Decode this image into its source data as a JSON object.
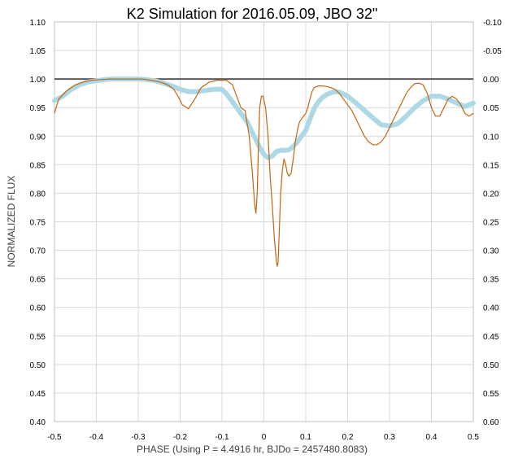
{
  "chart_data": {
    "type": "line",
    "title": "K2 Simulation for 2016.05.09, JBO 32\"",
    "xlabel": "PHASE (Using P = 4.4916 hr, BJDo = 2457480.8083)",
    "ylabel": "NORMALIZED FLUX",
    "xlim": [
      -0.5,
      0.5
    ],
    "ylim": [
      0.4,
      1.1
    ],
    "y2lim": [
      -0.1,
      0.6
    ],
    "y2_inverted": true,
    "grid": true,
    "x_ticks": [
      "-0.5",
      "-0.4",
      "-0.3",
      "-0.2",
      "-0.1",
      "0",
      "0.1",
      "0.2",
      "0.3",
      "0.4",
      "0.5"
    ],
    "y_ticks": [
      "0.40",
      "0.45",
      "0.50",
      "0.55",
      "0.60",
      "0.65",
      "0.70",
      "0.75",
      "0.80",
      "0.85",
      "0.90",
      "0.95",
      "1.00",
      "1.05",
      "1.10"
    ],
    "y2_ticks": [
      "0.60",
      "0.55",
      "0.50",
      "0.45",
      "0.40",
      "0.35",
      "0.30",
      "0.25",
      "0.20",
      "0.15",
      "0.10",
      "0.05",
      "0.00",
      "-0.05",
      "-0.10"
    ],
    "reference_line": 1.0,
    "colors": {
      "model": "#c5660e",
      "simulation": "#add8e6",
      "reference": "#595959",
      "grid": "#d9d9d9"
    },
    "series": [
      {
        "style": "thin-line",
        "x": [
          -0.5,
          -0.49,
          -0.47,
          -0.45,
          -0.43,
          -0.41,
          -0.39,
          -0.37,
          -0.35,
          -0.33,
          -0.31,
          -0.29,
          -0.27,
          -0.25,
          -0.24,
          -0.23,
          -0.22,
          -0.215,
          -0.205,
          -0.195,
          -0.18,
          -0.165,
          -0.15,
          -0.13,
          -0.11,
          -0.09,
          -0.075,
          -0.065,
          -0.055,
          -0.045,
          -0.035,
          -0.028,
          -0.022,
          -0.019,
          -0.016,
          -0.013,
          -0.01,
          -0.006,
          -0.002,
          0.004,
          0.01,
          0.015,
          0.02,
          0.025,
          0.03,
          0.032,
          0.034,
          0.037,
          0.04,
          0.044,
          0.048,
          0.052,
          0.056,
          0.06,
          0.065,
          0.07,
          0.075,
          0.08,
          0.085,
          0.09,
          0.095,
          0.1,
          0.105,
          0.11,
          0.115,
          0.12,
          0.13,
          0.14,
          0.15,
          0.16,
          0.17,
          0.18,
          0.19,
          0.2,
          0.21,
          0.22,
          0.23,
          0.24,
          0.25,
          0.26,
          0.27,
          0.28,
          0.29,
          0.3,
          0.31,
          0.32,
          0.33,
          0.34,
          0.35,
          0.36,
          0.37,
          0.38,
          0.39,
          0.4,
          0.41,
          0.42,
          0.43,
          0.44,
          0.45,
          0.46,
          0.47,
          0.48,
          0.49,
          0.5
        ],
        "y": [
          0.94,
          0.965,
          0.98,
          0.99,
          0.995,
          0.998,
          0.999,
          1.0,
          1.0,
          1.0,
          1.0,
          1.0,
          0.998,
          0.995,
          0.993,
          0.99,
          0.985,
          0.982,
          0.97,
          0.955,
          0.948,
          0.965,
          0.985,
          0.995,
          0.998,
          0.998,
          0.99,
          0.97,
          0.95,
          0.945,
          0.9,
          0.84,
          0.78,
          0.765,
          0.8,
          0.88,
          0.95,
          0.97,
          0.97,
          0.95,
          0.9,
          0.83,
          0.78,
          0.72,
          0.68,
          0.672,
          0.68,
          0.74,
          0.8,
          0.84,
          0.86,
          0.85,
          0.835,
          0.83,
          0.835,
          0.86,
          0.89,
          0.91,
          0.925,
          0.93,
          0.935,
          0.94,
          0.95,
          0.965,
          0.978,
          0.985,
          0.988,
          0.988,
          0.987,
          0.985,
          0.982,
          0.975,
          0.965,
          0.955,
          0.945,
          0.93,
          0.915,
          0.9,
          0.89,
          0.885,
          0.885,
          0.89,
          0.9,
          0.915,
          0.93,
          0.945,
          0.96,
          0.975,
          0.985,
          0.992,
          0.993,
          0.99,
          0.975,
          0.95,
          0.935,
          0.935,
          0.95,
          0.965,
          0.97,
          0.965,
          0.955,
          0.94,
          0.935,
          0.94
        ]
      },
      {
        "style": "thick-line",
        "x": [
          -0.5,
          -0.48,
          -0.46,
          -0.44,
          -0.42,
          -0.4,
          -0.38,
          -0.36,
          -0.34,
          -0.32,
          -0.3,
          -0.28,
          -0.26,
          -0.24,
          -0.22,
          -0.2,
          -0.18,
          -0.16,
          -0.14,
          -0.12,
          -0.1,
          -0.09,
          -0.08,
          -0.07,
          -0.06,
          -0.05,
          -0.04,
          -0.03,
          -0.02,
          -0.01,
          0.0,
          0.01,
          0.02,
          0.03,
          0.04,
          0.05,
          0.06,
          0.07,
          0.08,
          0.09,
          0.1,
          0.11,
          0.12,
          0.13,
          0.14,
          0.15,
          0.16,
          0.17,
          0.18,
          0.19,
          0.2,
          0.22,
          0.24,
          0.26,
          0.28,
          0.3,
          0.32,
          0.34,
          0.36,
          0.38,
          0.4,
          0.42,
          0.44,
          0.46,
          0.48,
          0.5
        ],
        "y": [
          0.962,
          0.97,
          0.982,
          0.99,
          0.995,
          0.997,
          0.999,
          1.0,
          1.0,
          1.0,
          1.0,
          0.999,
          0.997,
          0.993,
          0.988,
          0.982,
          0.978,
          0.978,
          0.98,
          0.982,
          0.982,
          0.975,
          0.965,
          0.955,
          0.945,
          0.935,
          0.925,
          0.91,
          0.895,
          0.88,
          0.868,
          0.862,
          0.865,
          0.873,
          0.875,
          0.875,
          0.876,
          0.882,
          0.89,
          0.9,
          0.91,
          0.93,
          0.948,
          0.96,
          0.968,
          0.973,
          0.976,
          0.978,
          0.977,
          0.974,
          0.97,
          0.958,
          0.945,
          0.932,
          0.92,
          0.918,
          0.922,
          0.935,
          0.95,
          0.962,
          0.97,
          0.97,
          0.965,
          0.958,
          0.952,
          0.958
        ]
      }
    ]
  }
}
